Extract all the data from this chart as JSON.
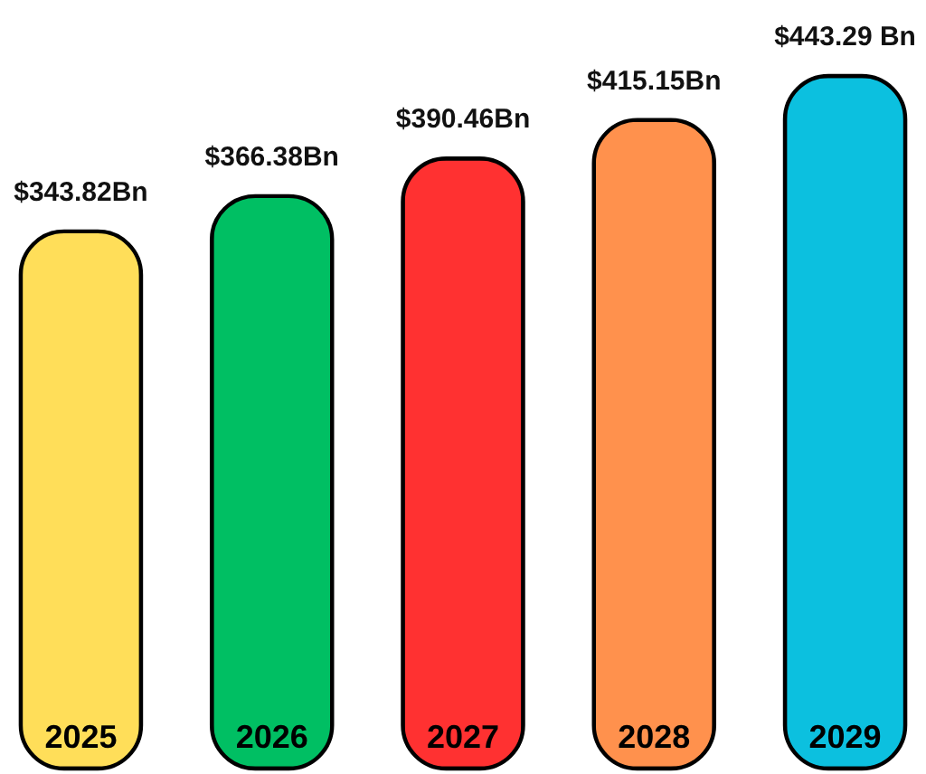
{
  "chart_data": {
    "type": "bar",
    "categories": [
      "2025",
      "2026",
      "2027",
      "2028",
      "2029"
    ],
    "values": [
      343.82,
      366.38,
      390.46,
      415.15,
      443.29
    ],
    "colors": [
      "#ffde59",
      "#00bf63",
      "#ff3131",
      "#ff914d",
      "#0cc0df"
    ],
    "value_labels": [
      "$343.82Bn",
      "$366.38Bn",
      "$390.46Bn",
      "$415.15Bn",
      "$443.29 Bn"
    ],
    "tick_labels": "x"
  }
}
